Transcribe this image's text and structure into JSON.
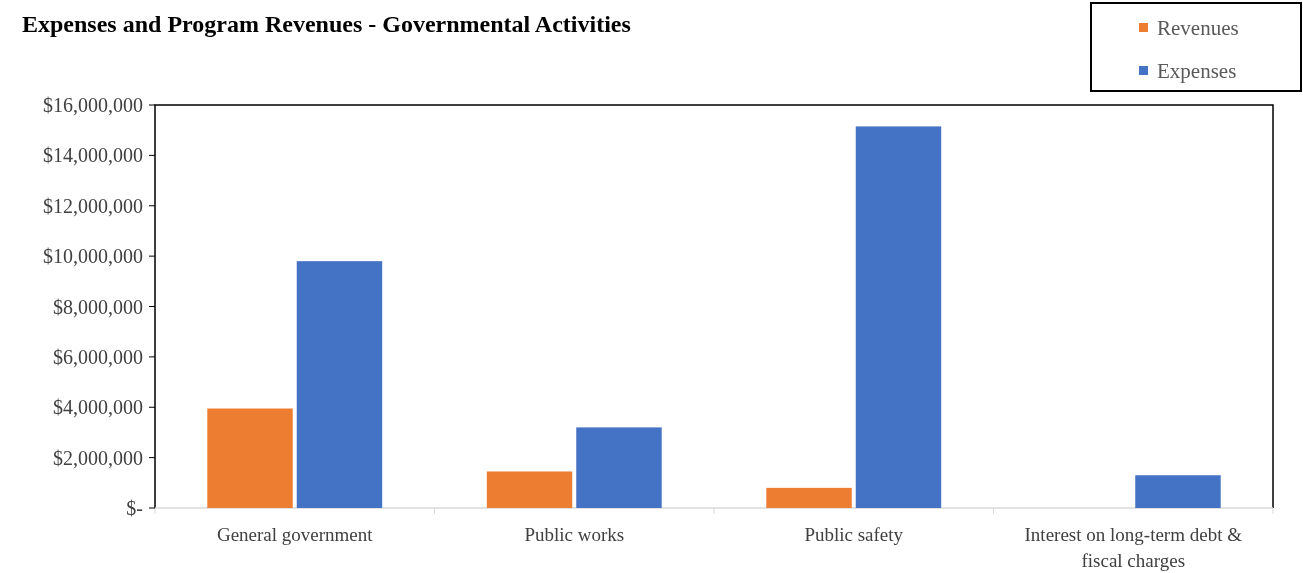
{
  "chart_data": {
    "type": "bar",
    "title": "Expenses and Program Revenues - Governmental Activities",
    "categories": [
      "General government",
      "Public works",
      "Public safety",
      "Interest on long-term debt & fiscal charges"
    ],
    "series": [
      {
        "name": "Revenues",
        "color": "#ed7d31",
        "values": [
          3950000,
          1450000,
          800000,
          0
        ]
      },
      {
        "name": "Expenses",
        "color": "#4472c4",
        "values": [
          9800000,
          3200000,
          15150000,
          1300000
        ]
      }
    ],
    "ylim": [
      0,
      16000000
    ],
    "yticks": [
      {
        "value": 0,
        "label": "$-"
      },
      {
        "value": 2000000,
        "label": "$2,000,000"
      },
      {
        "value": 4000000,
        "label": "$4,000,000"
      },
      {
        "value": 6000000,
        "label": "$6,000,000"
      },
      {
        "value": 8000000,
        "label": "$8,000,000"
      },
      {
        "value": 10000000,
        "label": "$10,000,000"
      },
      {
        "value": 12000000,
        "label": "$12,000,000"
      },
      {
        "value": 14000000,
        "label": "$14,000,000"
      },
      {
        "value": 16000000,
        "label": "$16,000,000"
      }
    ],
    "grid": false,
    "legend": "top right"
  }
}
